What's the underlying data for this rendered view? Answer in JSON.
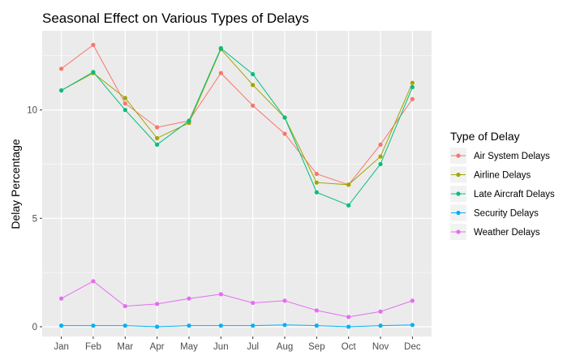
{
  "chart_data": {
    "type": "line",
    "title": "Seasonal Effect on Various Types of Delays",
    "xlabel": "",
    "ylabel": "Delay Percentage",
    "categories": [
      "Jan",
      "Feb",
      "Mar",
      "Apr",
      "May",
      "Jun",
      "Jul",
      "Aug",
      "Sep",
      "Oct",
      "Nov",
      "Dec"
    ],
    "ylim": [
      -0.45,
      13.65
    ],
    "yticks": [
      0,
      5,
      10
    ],
    "grid": true,
    "legend": {
      "title": "Type of Delay",
      "position": "right"
    },
    "series": [
      {
        "name": "Air System Delays",
        "color": "#F8766D",
        "values": [
          11.9,
          13.0,
          10.3,
          9.2,
          9.5,
          11.7,
          10.2,
          8.9,
          7.05,
          6.55,
          8.4,
          10.5
        ]
      },
      {
        "name": "Airline Delays",
        "color": "#A3A500",
        "values": [
          10.9,
          11.7,
          10.55,
          8.7,
          9.4,
          12.8,
          11.15,
          9.65,
          6.65,
          6.55,
          7.85,
          11.25
        ]
      },
      {
        "name": "Late Aircraft Delays",
        "color": "#00BF7D",
        "values": [
          10.9,
          11.75,
          10.0,
          8.4,
          9.5,
          12.85,
          11.65,
          9.65,
          6.2,
          5.6,
          7.5,
          11.05
        ]
      },
      {
        "name": "Security Delays",
        "color": "#00B0F6",
        "values": [
          0.05,
          0.05,
          0.05,
          0.0,
          0.05,
          0.05,
          0.05,
          0.08,
          0.05,
          0.0,
          0.05,
          0.08
        ]
      },
      {
        "name": "Weather Delays",
        "color": "#E76BF3",
        "values": [
          1.3,
          2.1,
          0.95,
          1.05,
          1.3,
          1.5,
          1.1,
          1.2,
          0.75,
          0.45,
          0.7,
          1.2
        ]
      }
    ]
  }
}
